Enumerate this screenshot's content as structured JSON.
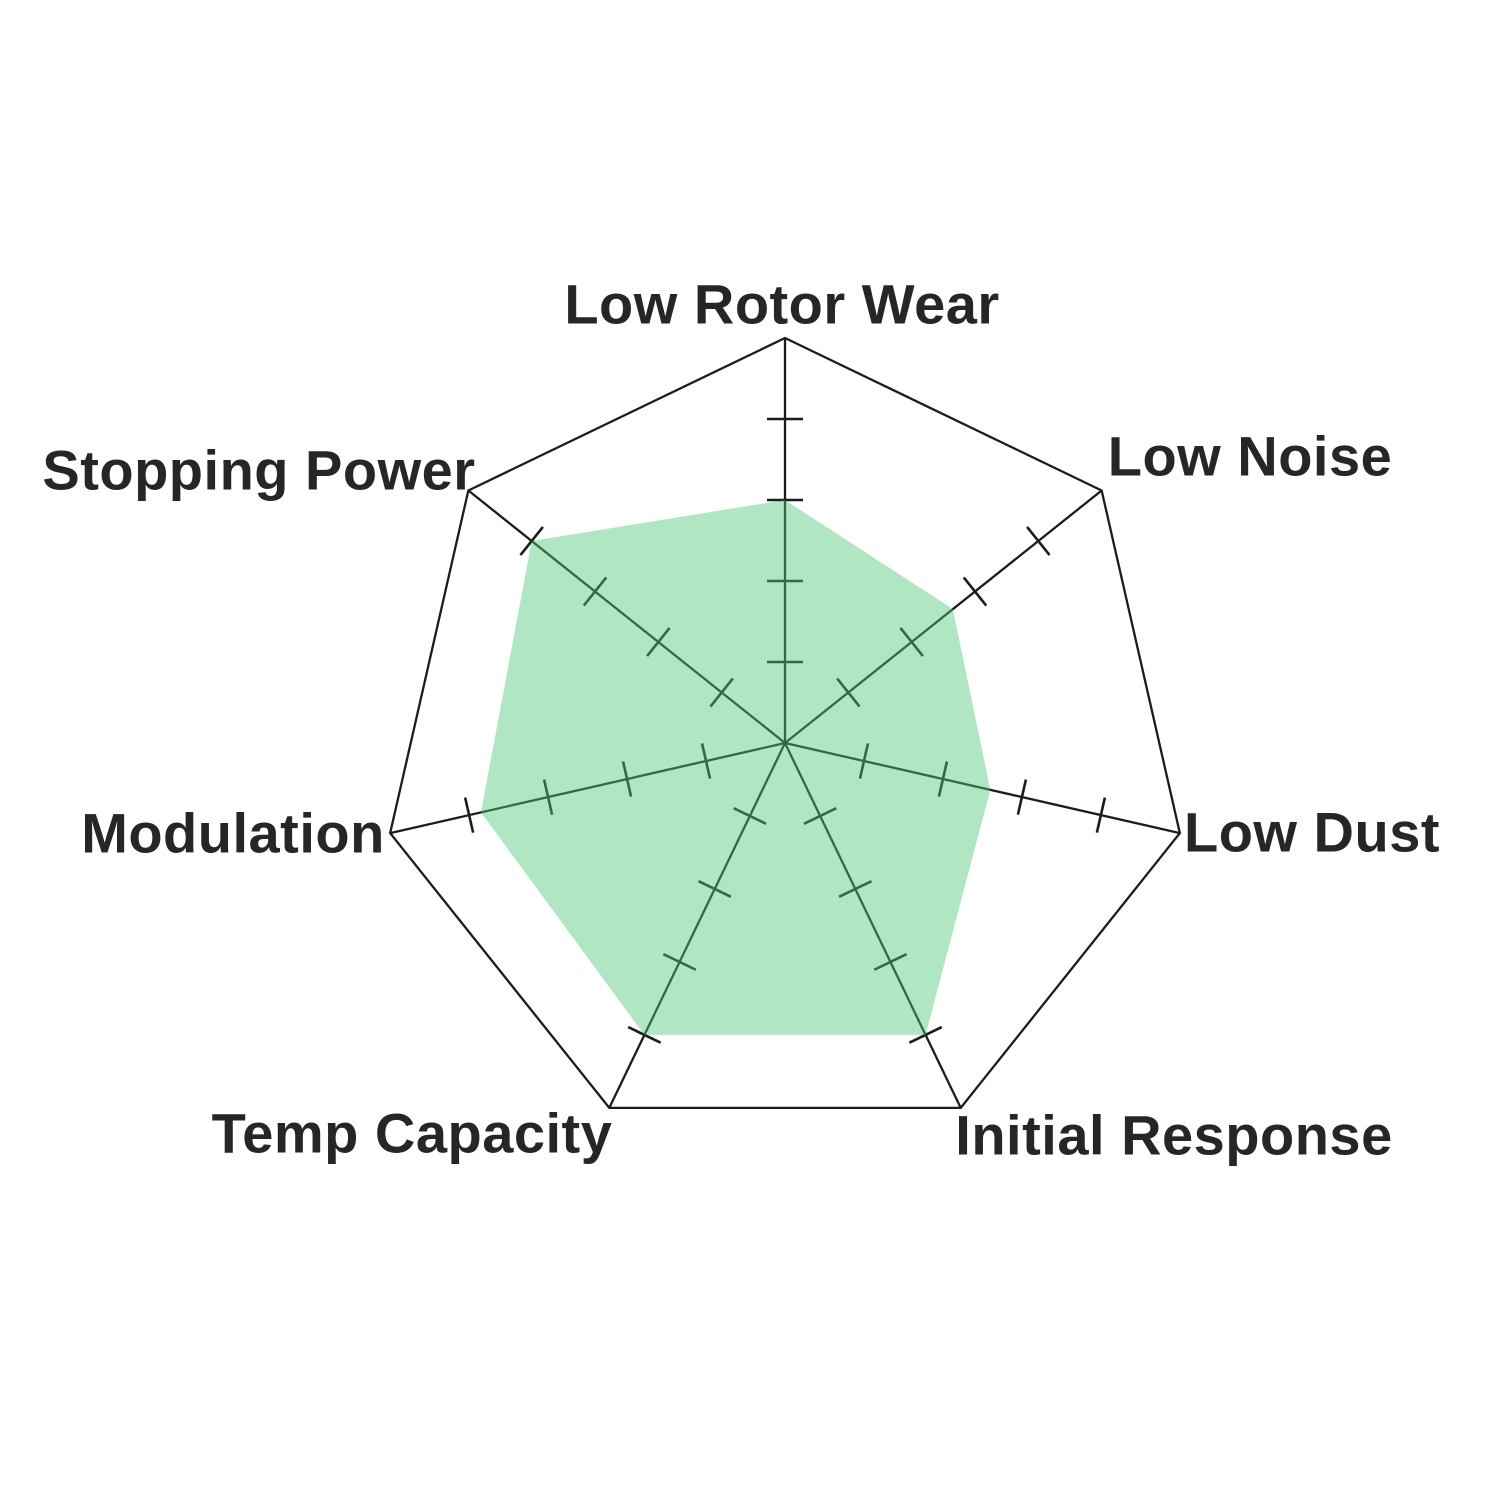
{
  "chart_data": {
    "type": "radar",
    "title": "",
    "categories": [
      "Low Rotor Wear",
      "Low Noise",
      "Low Dust",
      "Initial Response",
      "Temp Capacity",
      "Modulation",
      "Stopping Power"
    ],
    "values": [
      3.0,
      2.65,
      2.6,
      4.0,
      4.0,
      3.85,
      4.0
    ],
    "scale": {
      "min": 0,
      "max": 5,
      "tick_step": 1,
      "ticks_marked": [
        1,
        2,
        3,
        4
      ]
    },
    "start_axis": "top",
    "direction": "clockwise",
    "legend": "none",
    "grid_style": "spokes with tick marks and outer heptagon only",
    "colors": {
      "fill": "#50c878",
      "fill_opacity": "0.45",
      "line": "#1c1c1c",
      "label": "#262626",
      "background": "#ffffff"
    }
  }
}
